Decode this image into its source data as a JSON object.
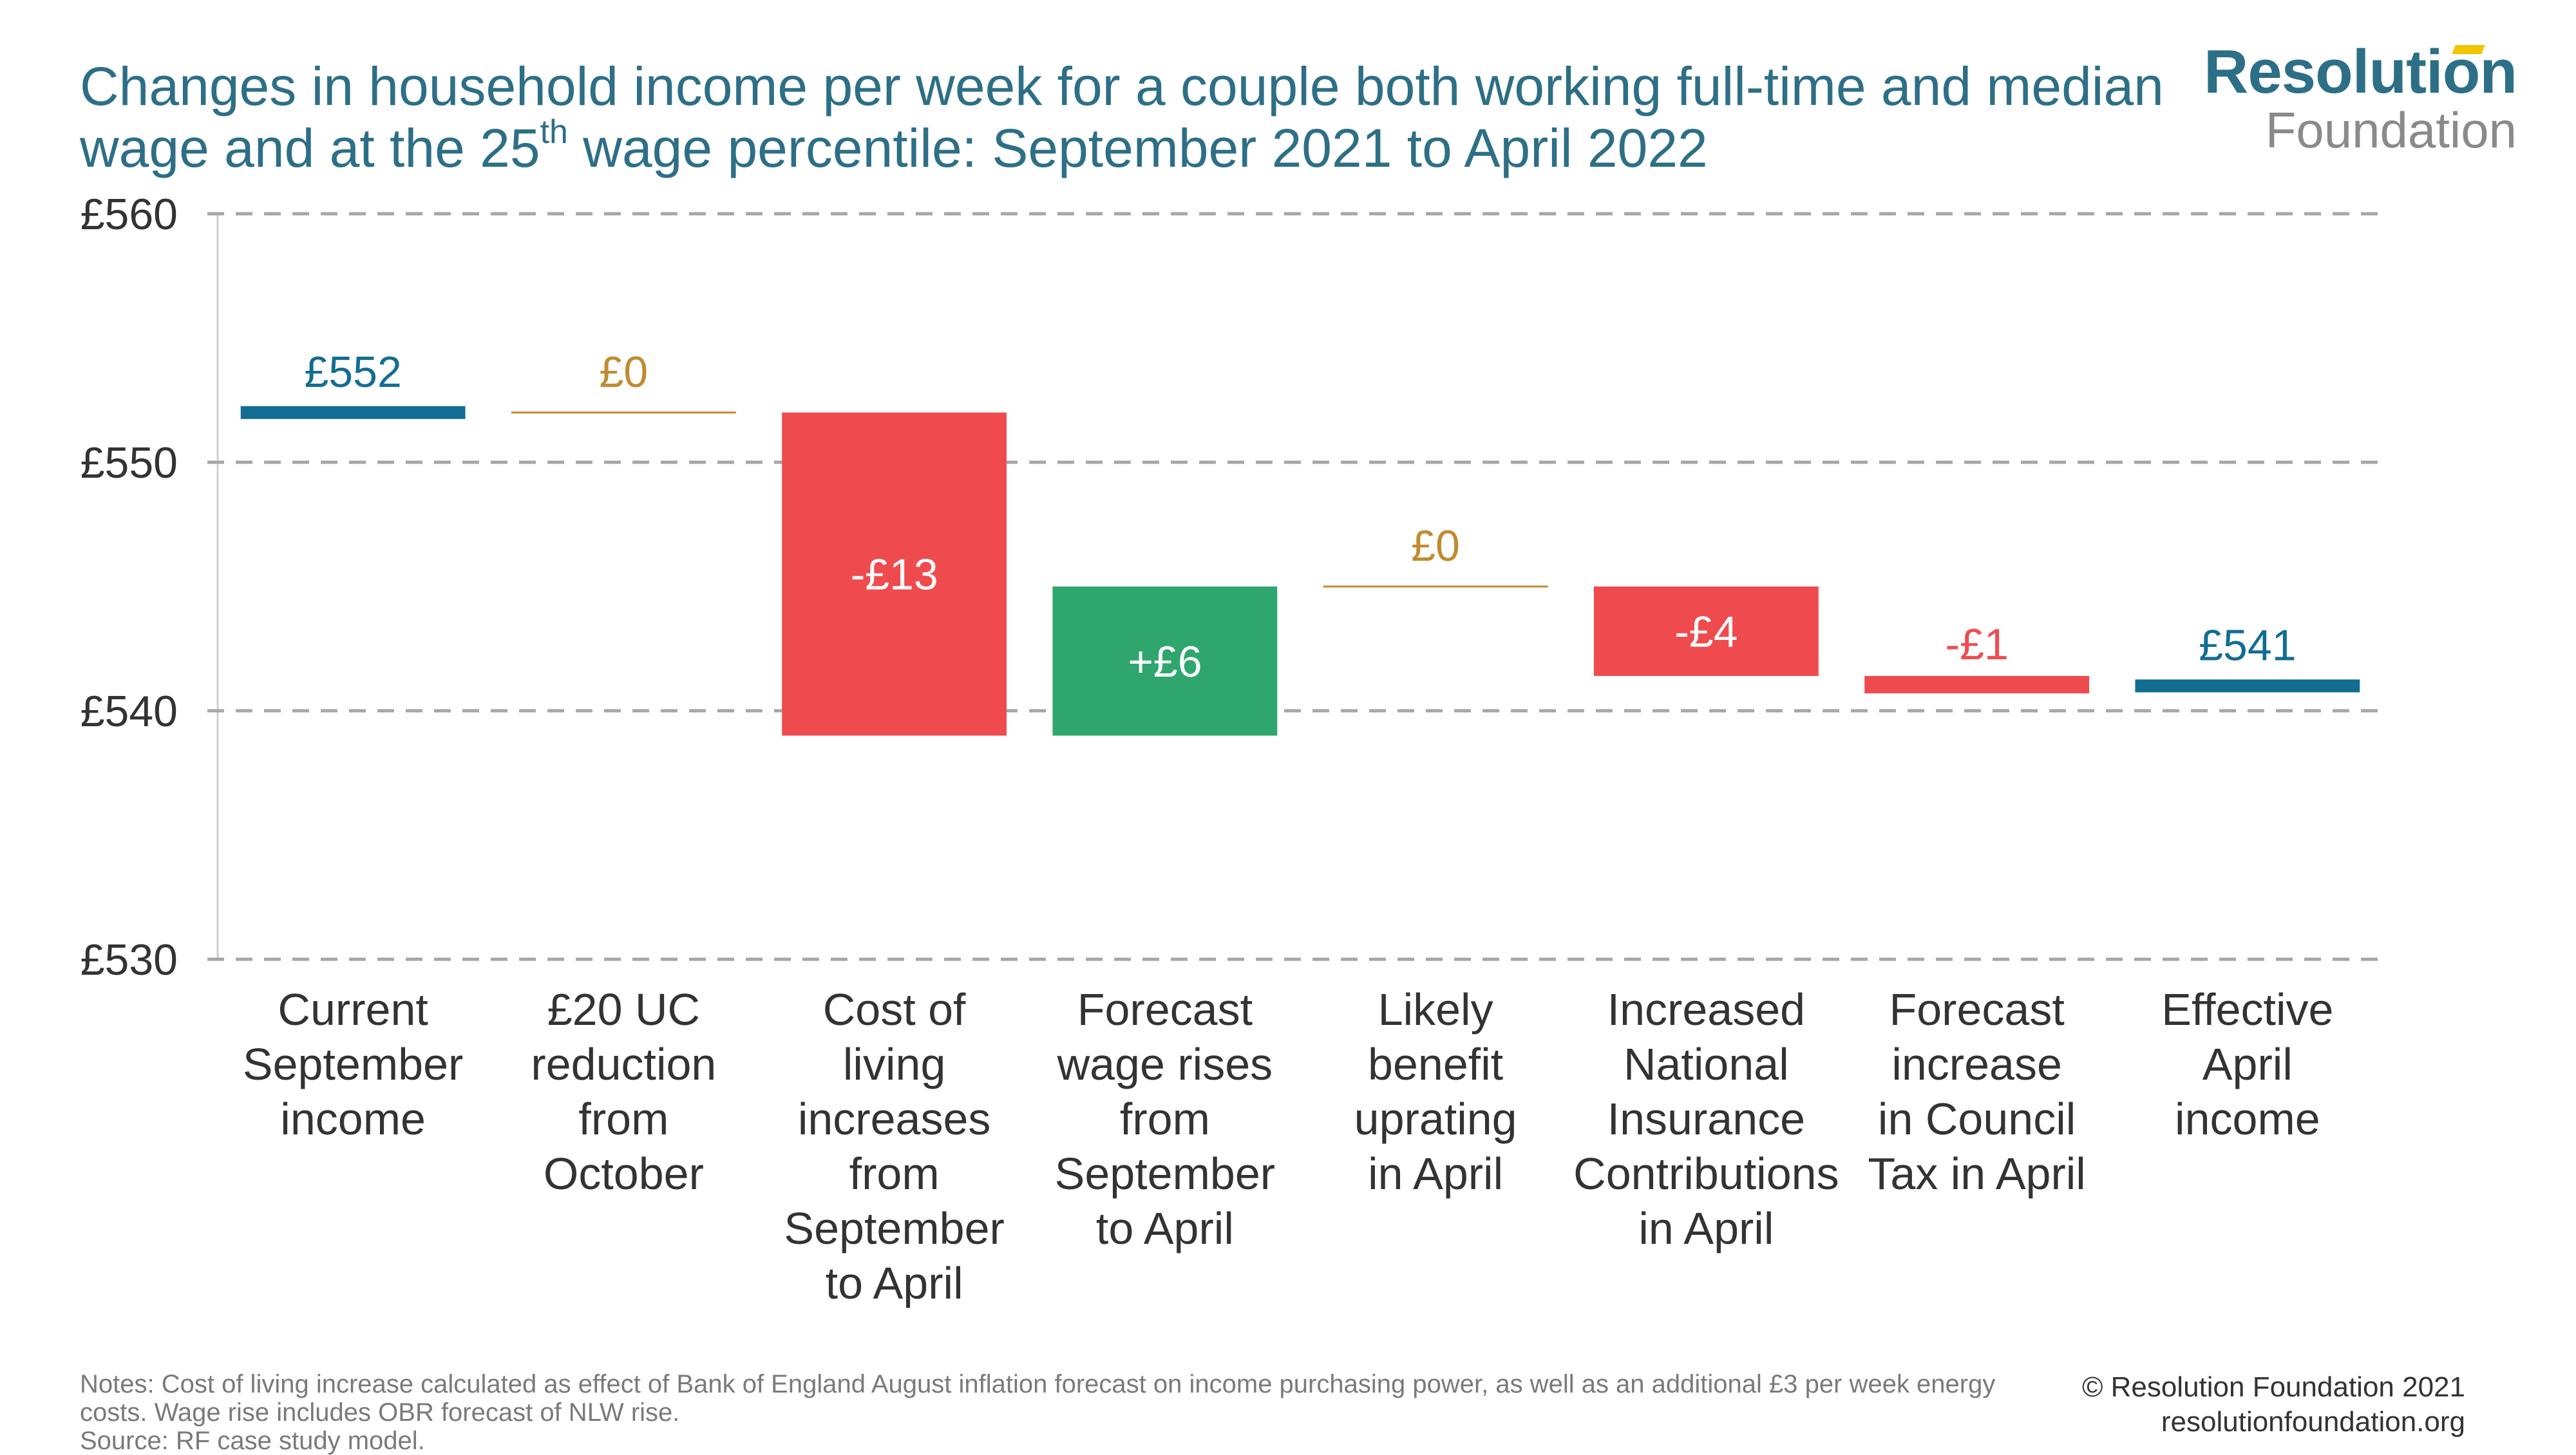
{
  "header": {
    "title_line1": "Changes in household income per week for a couple both working full-time and median",
    "title_line2_a": "wage and at the 25",
    "title_line2_sup": "th",
    "title_line2_b": " wage percentile: September 2021 to April 2022"
  },
  "logo": {
    "top": "Resolution",
    "bottom": "Foundation"
  },
  "colors": {
    "title": "#2d6f86",
    "total": "#126d93",
    "decrease": "#ef4b4f",
    "increase": "#2ea66e",
    "zero": "#c08b2f",
    "grid": "#a6a6a6",
    "tick": "#333333"
  },
  "chart_data": {
    "type": "waterfall",
    "title": "Changes in household income per week for a couple both working full-time and median wage and at the 25th wage percentile: September 2021 to April 2022",
    "ylim": [
      530,
      560
    ],
    "yticks": [
      530,
      540,
      550,
      560
    ],
    "ytick_labels": [
      "£530",
      "£540",
      "£550",
      "£560"
    ],
    "grid": "horizontal dashed",
    "steps": [
      {
        "category": [
          "Current",
          "September",
          "income"
        ],
        "kind": "total",
        "value": 552,
        "start": 552,
        "end": 552,
        "label": "£552"
      },
      {
        "category": [
          "£20 UC",
          "reduction",
          "from",
          "October"
        ],
        "kind": "zero",
        "value": 0,
        "start": 552,
        "end": 552,
        "label": "£0"
      },
      {
        "category": [
          "Cost of",
          "living",
          "increases",
          "from",
          "September",
          "to April"
        ],
        "kind": "decrease",
        "value": -13,
        "start": 552,
        "end": 539,
        "label": "-£13"
      },
      {
        "category": [
          "Forecast",
          "wage rises",
          "from",
          "September",
          "to April"
        ],
        "kind": "increase",
        "value": 6,
        "start": 539,
        "end": 545,
        "label": "+£6"
      },
      {
        "category": [
          "Likely",
          "benefit",
          "uprating",
          "in April"
        ],
        "kind": "zero",
        "value": 0,
        "start": 545,
        "end": 545,
        "label": "£0"
      },
      {
        "category": [
          "Increased",
          "National",
          "Insurance",
          "Contributions",
          "in April"
        ],
        "kind": "decrease",
        "value": -4,
        "start": 545,
        "end": 541.4,
        "label": "-£4"
      },
      {
        "category": [
          "Forecast",
          "increase",
          "in Council",
          "Tax in April"
        ],
        "kind": "decrease",
        "value": -1,
        "start": 541.4,
        "end": 540.7,
        "label": "-£1"
      },
      {
        "category": [
          "Effective",
          "April",
          "income"
        ],
        "kind": "total",
        "value": 541,
        "start": 541,
        "end": 541,
        "label": "£541"
      }
    ]
  },
  "footer": {
    "notes_line1": "Notes: Cost of living increase calculated as effect of Bank of England August inflation forecast on income purchasing power, as well as an additional £3 per week energy",
    "notes_line2": "costs. Wage rise includes OBR forecast of NLW rise.",
    "source": "Source: RF case study model.",
    "copyright": "© Resolution Foundation 2021",
    "website": "resolutionfoundation.org"
  }
}
